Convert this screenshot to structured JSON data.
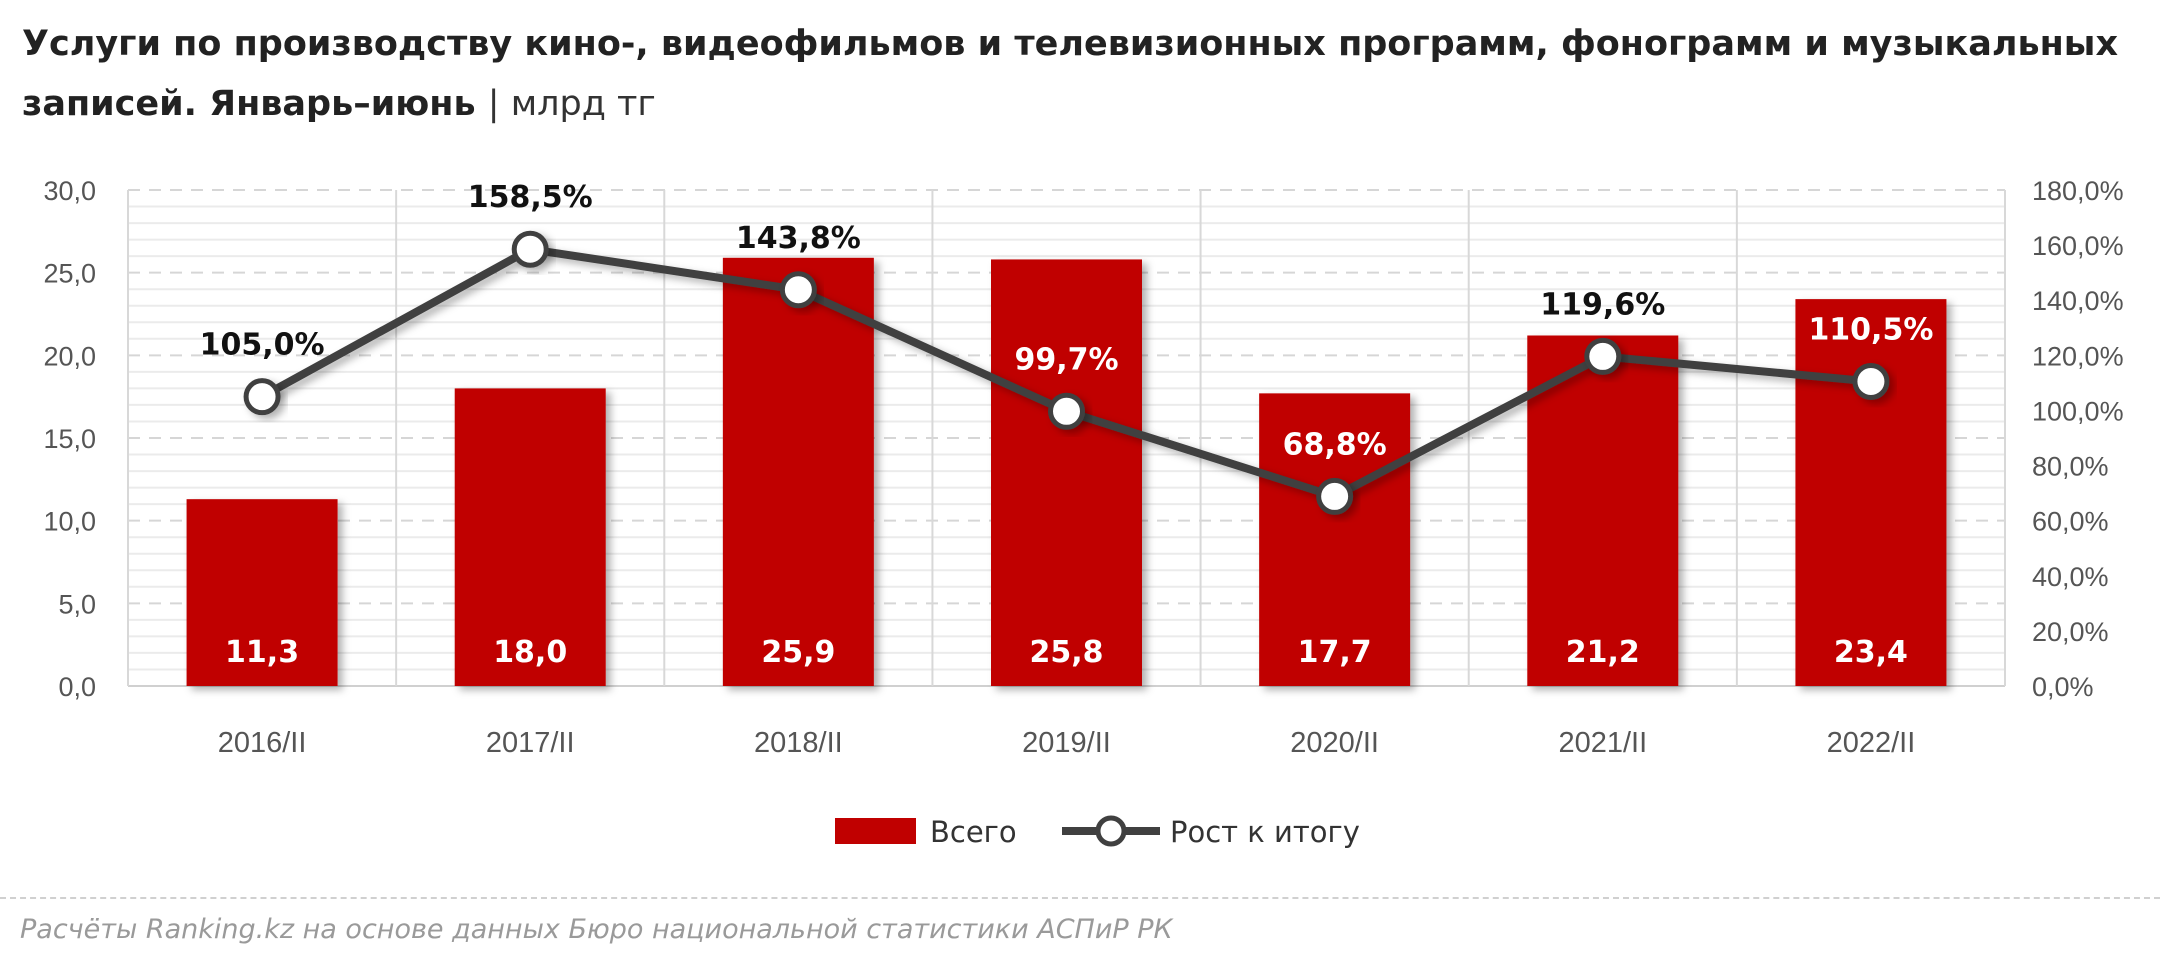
{
  "title": "Услуги по производству кино-, видеофильмов и телевизионных программ, фонограмм и музыкальных записей. Январь–июнь",
  "unit": "| млрд тг",
  "source": "Расчёты Ranking.kz на основе данных Бюро национальной статистики АСПиР РК",
  "chart_data": {
    "type": "bar+line",
    "categories": [
      "2016/II",
      "2017/II",
      "2018/II",
      "2019/II",
      "2020/II",
      "2021/II",
      "2022/II"
    ],
    "series": [
      {
        "name": "Всего",
        "type": "bar",
        "axis": "left",
        "color": "#c00000",
        "values": [
          11.3,
          18.0,
          25.9,
          25.8,
          17.7,
          21.2,
          23.4
        ],
        "labels": [
          "11,3",
          "18,0",
          "25,9",
          "25,8",
          "17,7",
          "21,2",
          "23,4"
        ]
      },
      {
        "name": "Рост к итогу",
        "type": "line",
        "axis": "right",
        "color": "#404040",
        "values": [
          105.0,
          158.5,
          143.8,
          99.7,
          68.8,
          119.6,
          110.5
        ],
        "labels": [
          "105,0%",
          "158,5%",
          "143,8%",
          "99,7%",
          "68,8%",
          "119,6%",
          "110,5%"
        ]
      }
    ],
    "left_axis": {
      "min": 0,
      "max": 30,
      "ticks": [
        "0,0",
        "5,0",
        "10,0",
        "15,0",
        "20,0",
        "25,0",
        "30,0"
      ]
    },
    "right_axis": {
      "min": 0,
      "max": 180,
      "ticks": [
        "0,0%",
        "20,0%",
        "40,0%",
        "60,0%",
        "80,0%",
        "100,0%",
        "120,0%",
        "140,0%",
        "160,0%",
        "180,0%"
      ]
    },
    "grid": true,
    "legend": "bottom"
  }
}
